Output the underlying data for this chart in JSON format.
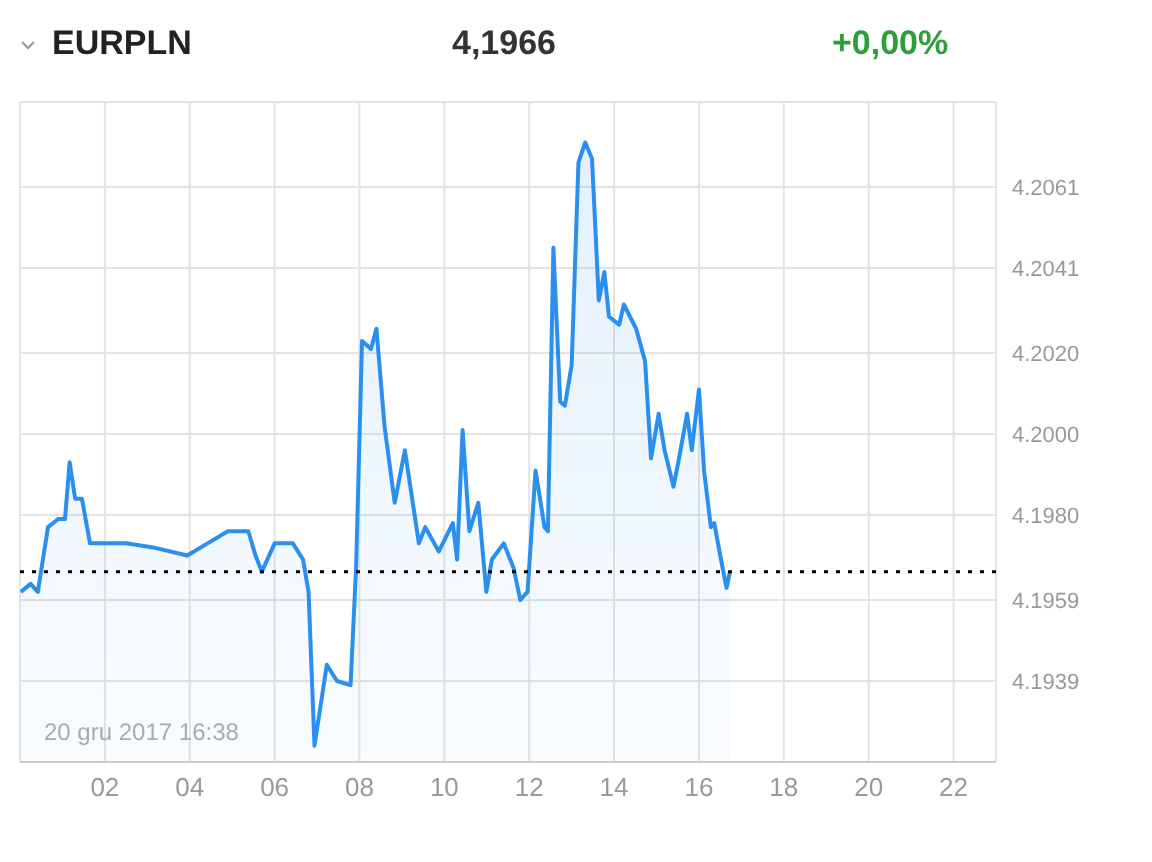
{
  "chart_data": {
    "type": "area",
    "title": "EURPLN",
    "annotations": [
      "4,1966",
      "+0,00%",
      "20 gru 2017 16:38"
    ],
    "x": [
      0.02,
      0.25,
      0.42,
      0.66,
      0.9,
      1.06,
      1.17,
      1.3,
      1.46,
      1.65,
      2.5,
      3.14,
      3.94,
      4.42,
      4.9,
      5.38,
      5.55,
      5.7,
      6.0,
      6.43,
      6.67,
      6.8,
      6.94,
      7.23,
      7.47,
      7.79,
      7.92,
      8.06,
      8.27,
      8.4,
      8.59,
      8.83,
      9.07,
      9.4,
      9.55,
      9.87,
      10.2,
      10.3,
      10.43,
      10.59,
      10.8,
      10.99,
      11.12,
      11.4,
      11.63,
      11.79,
      11.96,
      12.15,
      12.36,
      12.44,
      12.57,
      12.73,
      12.84,
      13.0,
      13.16,
      13.32,
      13.48,
      13.64,
      13.77,
      13.88,
      14.12,
      14.23,
      14.52,
      14.73,
      14.87,
      15.05,
      15.19,
      15.4,
      15.53,
      15.72,
      15.83,
      16.0,
      16.12,
      16.28,
      16.36,
      16.52,
      16.65,
      16.73
    ],
    "series": [
      {
        "color": "#2b8ff0",
        "values": [
          4.1961,
          4.1963,
          4.1961,
          4.1977,
          4.1979,
          4.1979,
          4.1993,
          4.1984,
          4.1984,
          4.1973,
          4.1973,
          4.1972,
          4.197,
          4.1973,
          4.1976,
          4.1976,
          4.197,
          4.1966,
          4.1973,
          4.1973,
          4.1969,
          4.1961,
          4.1923,
          4.1943,
          4.1939,
          4.1938,
          4.1967,
          4.2023,
          4.2021,
          4.2026,
          4.2002,
          4.1983,
          4.1996,
          4.1973,
          4.1977,
          4.1971,
          4.1978,
          4.1969,
          4.2001,
          4.1976,
          4.1983,
          4.1961,
          4.1969,
          4.1973,
          4.1967,
          4.1959,
          4.1961,
          4.1991,
          4.1977,
          4.1976,
          4.2046,
          4.2008,
          4.2007,
          4.2017,
          4.2067,
          4.2072,
          4.2068,
          4.2033,
          4.204,
          4.2029,
          4.2027,
          4.2032,
          4.2026,
          4.2018,
          4.1994,
          4.2005,
          4.1996,
          4.1987,
          4.1994,
          4.2005,
          4.1996,
          4.2011,
          4.1991,
          4.1977,
          4.1978,
          4.1969,
          4.1962,
          4.1966
        ]
      }
    ],
    "xlim": [
      0,
      23
    ],
    "xticks": [
      {
        "value": 2,
        "label": "02"
      },
      {
        "value": 4,
        "label": "04"
      },
      {
        "value": 6,
        "label": "06"
      },
      {
        "value": 8,
        "label": "08"
      },
      {
        "value": 10,
        "label": "10"
      },
      {
        "value": 12,
        "label": "12"
      },
      {
        "value": 14,
        "label": "14"
      },
      {
        "value": 16,
        "label": "16"
      },
      {
        "value": 18,
        "label": "18"
      },
      {
        "value": 20,
        "label": "20"
      },
      {
        "value": 22,
        "label": "22"
      }
    ],
    "ylim": [
      4.1919,
      4.2082
    ],
    "yticks": [
      4.1939,
      4.1959,
      {
        "value": 4.198,
        "label": "4.1980"
      },
      {
        "value": 4.2,
        "label": "4.2000"
      },
      {
        "value": 4.202,
        "label": "4.2020"
      },
      4.2041,
      4.2061
    ],
    "ref_lines": [
      {
        "axis": "y",
        "value": 4.1966,
        "color": "#000000",
        "line_style": "dotted"
      }
    ],
    "grid": true,
    "legend": false
  }
}
